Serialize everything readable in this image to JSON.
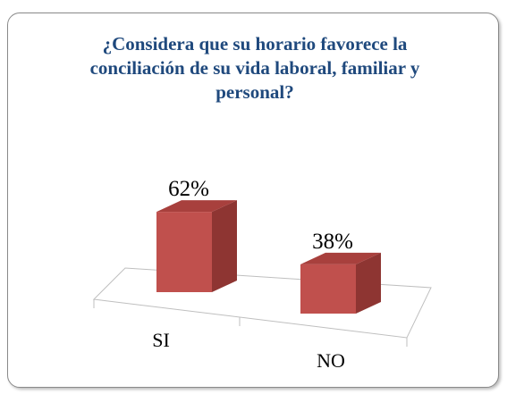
{
  "chart_data": {
    "type": "bar3d",
    "title": "¿Considera que su horario favorece la conciliación de su vida laboral, familiar y personal?",
    "categories": [
      "SI",
      "NO"
    ],
    "values": [
      62,
      38
    ],
    "value_labels": [
      "62%",
      "38%"
    ],
    "color": "#c0504d"
  }
}
